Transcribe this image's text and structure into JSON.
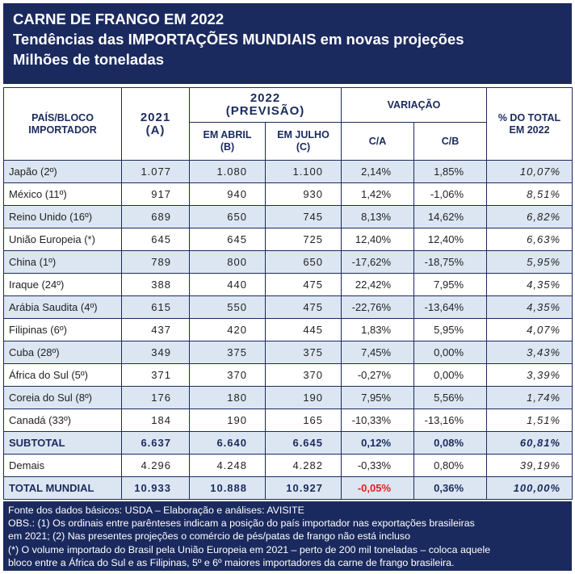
{
  "header": {
    "line1": "CARNE DE FRANGO EM 2022",
    "line2": "Tendências das IMPORTAÇÕES MUNDIAIS em novas projeções",
    "line3": "Milhões de toneladas"
  },
  "table_header": {
    "country_l1": "PAÍS/BLOCO",
    "country_l2": "IMPORTADOR",
    "y2021_l1": "2021",
    "y2021_l2": "(A)",
    "y2022_l1": "2022",
    "y2022_l2": "(PREVISÃO)",
    "abril_l1": "EM ABRIL",
    "abril_l2": "(B)",
    "julho_l1": "EM JULHO",
    "julho_l2": "(C)",
    "variacao": "VARIAÇÃO",
    "ca": "C/A",
    "cb": "C/B",
    "total_l1": "% DO TOTAL",
    "total_l2": "EM 2022"
  },
  "rows": [
    {
      "country": "Japão (2º)",
      "a": "1.077",
      "b": "1.080",
      "c": "1.100",
      "ca": "2,14%",
      "cb": "1,85%",
      "share": "10,07%"
    },
    {
      "country": "México (11º)",
      "a": "917",
      "b": "940",
      "c": "930",
      "ca": "1,42%",
      "cb": "-1,06%",
      "share": "8,51%"
    },
    {
      "country": "Reino Unido (16º)",
      "a": "689",
      "b": "650",
      "c": "745",
      "ca": "8,13%",
      "cb": "14,62%",
      "share": "6,82%"
    },
    {
      "country": "União Europeia (*)",
      "a": "645",
      "b": "645",
      "c": "725",
      "ca": "12,40%",
      "cb": "12,40%",
      "share": "6,63%"
    },
    {
      "country": "China (1º)",
      "a": "789",
      "b": "800",
      "c": "650",
      "ca": "-17,62%",
      "cb": "-18,75%",
      "share": "5,95%"
    },
    {
      "country": "Iraque (24º)",
      "a": "388",
      "b": "440",
      "c": "475",
      "ca": "22,42%",
      "cb": "7,95%",
      "share": "4,35%"
    },
    {
      "country": "Arábia Saudita (4º)",
      "a": "615",
      "b": "550",
      "c": "475",
      "ca": "-22,76%",
      "cb": "-13,64%",
      "share": "4,35%"
    },
    {
      "country": "Filipinas (6º)",
      "a": "437",
      "b": "420",
      "c": "445",
      "ca": "1,83%",
      "cb": "5,95%",
      "share": "4,07%"
    },
    {
      "country": "Cuba (28º)",
      "a": "349",
      "b": "375",
      "c": "375",
      "ca": "7,45%",
      "cb": "0,00%",
      "share": "3,43%"
    },
    {
      "country": "África do Sul (5º)",
      "a": "371",
      "b": "370",
      "c": "370",
      "ca": "-0,27%",
      "cb": "0,00%",
      "share": "3,39%"
    },
    {
      "country": "Coreia do Sul (8º)",
      "a": "176",
      "b": "180",
      "c": "190",
      "ca": "7,95%",
      "cb": "5,56%",
      "share": "1,74%"
    },
    {
      "country": "Canadá (33º)",
      "a": "184",
      "b": "190",
      "c": "165",
      "ca": "-10,33%",
      "cb": "-13,16%",
      "share": "1,51%"
    }
  ],
  "subtotal": {
    "country": "SUBTOTAL",
    "a": "6.637",
    "b": "6.640",
    "c": "6.645",
    "ca": "0,12%",
    "cb": "0,08%",
    "share": "60,81%"
  },
  "demais": {
    "country": "Demais",
    "a": "4.296",
    "b": "4.248",
    "c": "4.282",
    "ca": "-0,33%",
    "cb": "0,80%",
    "share": "39,19%"
  },
  "total": {
    "country": "TOTAL MUNDIAL",
    "a": "10.933",
    "b": "10.888",
    "c": "10.927",
    "ca": "-0,05%",
    "cb": "0,36%",
    "share": "100,00%"
  },
  "footer": {
    "line1": "Fonte dos dados básicos: USDA – Elaboração e análises: AVISITE",
    "line2": "OBS.: (1) Os ordinais entre parênteses indicam a posição do país importador nas exportações brasileiras",
    "line3": "em 2021;   (2) Nas presentes projeções o comércio de pés/patas de frango não está incluso",
    "line4": "(*) O volume importado do Brasil pela União Europeia em 2021 – perto de 200 mil toneladas – coloca aquele",
    "line5": "bloco entre a África do Sul e as Filipinas, 5º e 6º maiores importadores da carne de frango brasileira."
  },
  "colors": {
    "navy": "#1b2a5e",
    "shade": "#dce6f2",
    "negative": "#e81c1c"
  }
}
